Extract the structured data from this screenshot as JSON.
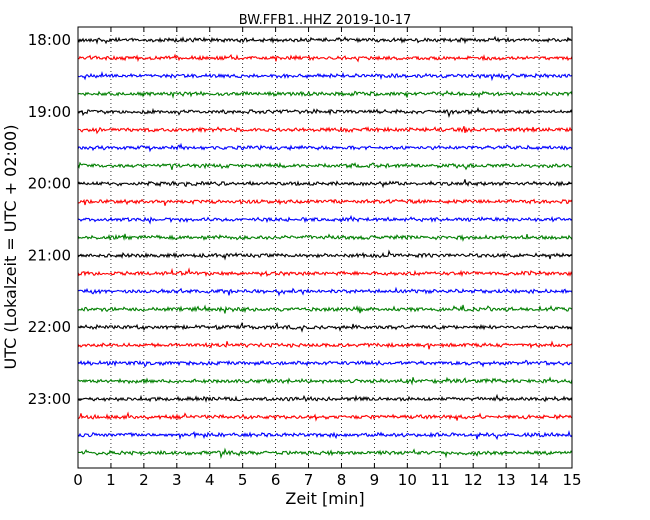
{
  "chart_data": {
    "type": "line",
    "title": "BW.FFB1..HHZ 2019-10-17",
    "xlabel": "Zeit  [min]",
    "ylabel": "UTC (Lokalzeit = UTC + 02:00)",
    "xlim": [
      0,
      15
    ],
    "x_ticks": [
      "0",
      "1",
      "2",
      "3",
      "4",
      "5",
      "6",
      "7",
      "8",
      "9",
      "10",
      "11",
      "12",
      "13",
      "14",
      "15"
    ],
    "y_ticks": [
      "18:00",
      "19:00",
      "20:00",
      "21:00",
      "22:00",
      "23:00"
    ],
    "grid": "vertical dotted",
    "trace_count": 24,
    "trace_interval_min": 15,
    "first_trace_start": "18:00",
    "trace_colors": [
      "#000000",
      "#ff0000",
      "#0000ff",
      "#007f00"
    ]
  }
}
